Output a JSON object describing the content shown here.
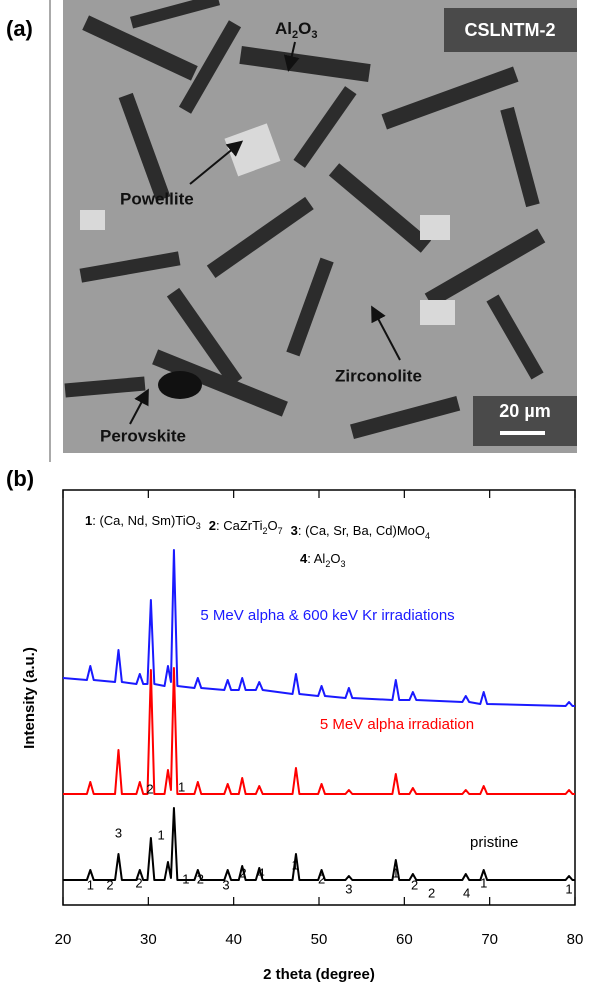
{
  "panel_a": {
    "label": "(a)",
    "sample": "CSLNTM-2",
    "phase_al2o3": [
      "Al",
      "2",
      "O",
      "3"
    ],
    "phase_powellite": "Powellite",
    "phase_zirconolite": "Zirconolite",
    "phase_perovskite": "Perovskite",
    "scale_bar": "20 µm"
  },
  "chart_data": {
    "type": "line",
    "panel_label": "(b)",
    "x_label": "2 theta (degree)",
    "y_label": "Intensity (a.u.)",
    "xlim": [
      20,
      80
    ],
    "xticks": [
      20,
      30,
      40,
      50,
      60,
      70,
      80
    ],
    "ylim": [
      -3.75,
      100
    ],
    "key": [
      {
        "id": "1",
        "parts": [
          ": (Ca, Nd, Sm)TiO",
          "3"
        ]
      },
      {
        "id": "2",
        "parts": [
          ": CaZrTi",
          "2",
          "O",
          "7"
        ]
      },
      {
        "id": "3",
        "parts": [
          ": (Ca, Sr, Ba, Cd)MoO",
          "4"
        ]
      },
      {
        "id": "4",
        "parts": [
          ": Al",
          "2",
          "O",
          "3"
        ]
      }
    ],
    "x": [
      20,
      22.8,
      23.2,
      23.6,
      26.1,
      26.5,
      26.9,
      28.6,
      29.0,
      29.4,
      29.9,
      30.3,
      30.7,
      31.9,
      32.3,
      32.65,
      33.0,
      33.4,
      35.4,
      35.8,
      36.2,
      38.9,
      39.3,
      39.7,
      40.6,
      41.0,
      41.4,
      42.6,
      43.0,
      43.4,
      46.9,
      47.3,
      47.7,
      49.9,
      50.3,
      50.7,
      53.1,
      53.5,
      53.9,
      58.6,
      59.0,
      59.4,
      60.6,
      61.0,
      61.4,
      66.8,
      67.2,
      67.6,
      68.9,
      69.3,
      69.7,
      78.9,
      79.3,
      79.7,
      80
    ],
    "series": [
      {
        "name": "pristine",
        "color": "#000000",
        "label_x": 67.7,
        "label_y": 11.75,
        "values": [
          2.5,
          2.5,
          5,
          2.5,
          2.5,
          9,
          2.5,
          2.5,
          5,
          2.5,
          2.5,
          13,
          2.5,
          2.5,
          7,
          3,
          20.5,
          2.5,
          2.5,
          5,
          2.5,
          2.5,
          5,
          2.5,
          2.5,
          6,
          2.5,
          2.5,
          5.5,
          2.5,
          2.5,
          9,
          2.5,
          2.5,
          5,
          2.5,
          2.5,
          3.5,
          2.5,
          2.5,
          7.5,
          2.5,
          2.5,
          4,
          2.5,
          2.5,
          4,
          2.5,
          2.5,
          5,
          2.5,
          2.5,
          3.5,
          2.5,
          2.5
        ]
      },
      {
        "name": "5 MeV alpha irradiation",
        "color": "#ff0000",
        "label_x": 50.1,
        "label_y": 41.25,
        "values": [
          24,
          24,
          27,
          24,
          24,
          35,
          24,
          24,
          27,
          24,
          24,
          55,
          24,
          24,
          30,
          25,
          55.5,
          24,
          24,
          27,
          24,
          24,
          26.5,
          24,
          24,
          28,
          24,
          24,
          26,
          24,
          24,
          30.5,
          24,
          24,
          26.5,
          24,
          24,
          25,
          24,
          24,
          29,
          24,
          24,
          25.5,
          24,
          24,
          25,
          24,
          24,
          26,
          24,
          24,
          25,
          24,
          24
        ]
      },
      {
        "name": "5 MeV alpha & 600 keV Kr irradiations",
        "color": "#1a1aff",
        "label_x": 36.1,
        "label_y": 68.5,
        "values": [
          53,
          52.5,
          56,
          52.5,
          52,
          60,
          52,
          51.5,
          54,
          51.5,
          51.5,
          72.5,
          51.5,
          51,
          56,
          52,
          85,
          51,
          50.5,
          53,
          50.5,
          50,
          52.5,
          50,
          50,
          53,
          50,
          50,
          52,
          50,
          49,
          54,
          49,
          48.5,
          51,
          48.5,
          48,
          50.5,
          48,
          47.5,
          52.5,
          47.5,
          47.5,
          49.5,
          47.5,
          47,
          48.5,
          47,
          46.5,
          49.5,
          46.5,
          46,
          47,
          46,
          46
        ]
      }
    ],
    "peak_labels": [
      {
        "label": "1",
        "x": 23.2,
        "y": 1
      },
      {
        "label": "2",
        "x": 25.5,
        "y": 1
      },
      {
        "label": "3",
        "x": 26.5,
        "y": 14
      },
      {
        "label": "2",
        "x": 28.9,
        "y": 1.5
      },
      {
        "label": "2",
        "x": 30.2,
        "y": 25
      },
      {
        "label": "1",
        "x": 31.5,
        "y": 13.5
      },
      {
        "label": "1",
        "x": 33.9,
        "y": 25.5
      },
      {
        "label": "1",
        "x": 34.4,
        "y": 2.5
      },
      {
        "label": "2",
        "x": 36.1,
        "y": 2.5
      },
      {
        "label": "3",
        "x": 39.1,
        "y": 1
      },
      {
        "label": "2",
        "x": 41.1,
        "y": 4
      },
      {
        "label": "4",
        "x": 43.2,
        "y": 4
      },
      {
        "label": "1",
        "x": 47.2,
        "y": 6
      },
      {
        "label": "2",
        "x": 50.3,
        "y": 2.5
      },
      {
        "label": "3",
        "x": 53.5,
        "y": 0
      },
      {
        "label": "1",
        "x": 59,
        "y": 4
      },
      {
        "label": "2",
        "x": 61.2,
        "y": 1
      },
      {
        "label": "2",
        "x": 63.2,
        "y": -1
      },
      {
        "label": "4",
        "x": 67.3,
        "y": -1
      },
      {
        "label": "1",
        "x": 69.3,
        "y": 1.5
      },
      {
        "label": "1",
        "x": 79.3,
        "y": 0
      }
    ]
  }
}
